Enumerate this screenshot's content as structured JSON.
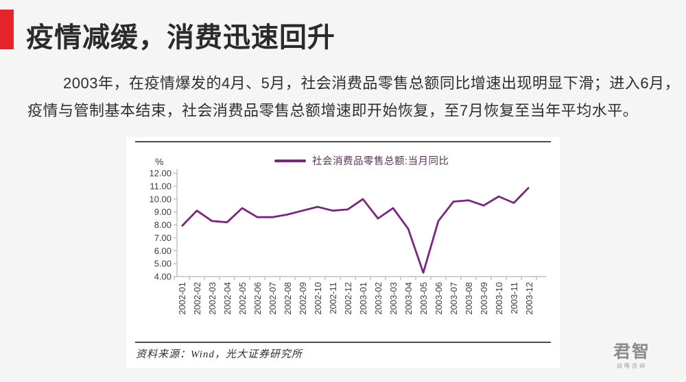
{
  "page": {
    "background_color": "#f5f5f6",
    "accent_color": "#e4232b"
  },
  "header": {
    "title": "疫情减缓，消费迅速回升"
  },
  "body": {
    "lines": [
      "2003年，在疫情爆发的4月、5月，社会消费品零售总额同比增速出现明显下滑；进入6月，",
      "疫情与管制基本结束，社会消费品零售总额增速即开始恢复，至7月恢复至当年平均水平。"
    ]
  },
  "chart": {
    "unit_label": "%",
    "source": "资料来源：Wind，光大证券研究所"
  },
  "chart_data": {
    "type": "line",
    "title": "",
    "legend_position": "top",
    "grid": false,
    "ylabel": "%",
    "xlabel": "",
    "ylim": [
      4,
      12
    ],
    "ytick_step": 1,
    "x": [
      "2002-01",
      "2002-02",
      "2002-03",
      "2002-04",
      "2002-05",
      "2002-06",
      "2002-07",
      "2002-08",
      "2002-09",
      "2002-10",
      "2002-11",
      "2002-12",
      "2003-01",
      "2003-02",
      "2003-03",
      "2003-04",
      "2003-05",
      "2003-06",
      "2003-07",
      "2003-08",
      "2003-09",
      "2003-10",
      "2003-11",
      "2003-12"
    ],
    "series": [
      {
        "name": "社会消费品零售总额:当月同比",
        "color": "#7c2382",
        "values": [
          7.9,
          9.1,
          8.3,
          8.2,
          9.3,
          8.6,
          8.6,
          8.8,
          9.1,
          9.4,
          9.1,
          9.2,
          10.0,
          8.5,
          9.3,
          7.7,
          4.3,
          8.3,
          9.8,
          9.9,
          9.5,
          10.2,
          9.7,
          10.9
        ]
      }
    ]
  },
  "footer": {
    "logo_name": "君智",
    "logo_subtext": "战略咨询"
  }
}
